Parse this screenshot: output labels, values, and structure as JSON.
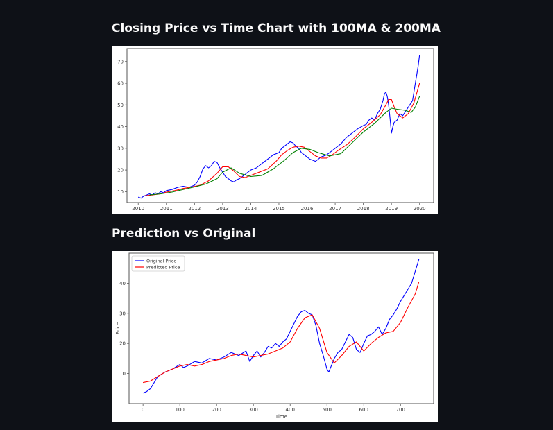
{
  "page": {
    "heading_ma": "Closing Price vs Time Chart with 100MA & 200MA",
    "heading_pred": "Prediction vs Original"
  },
  "colors": {
    "background": "#0e1117",
    "price": "#0000ff",
    "ma100": "#ff0000",
    "ma200": "#008000",
    "original": "#0000ff",
    "predicted": "#ff0000"
  },
  "chart_data": [
    {
      "type": "line",
      "title": "",
      "xlabel": "",
      "ylabel": "",
      "xlim": [
        2009.6,
        2020.5
      ],
      "ylim": [
        5,
        76
      ],
      "xticks": [
        2010,
        2011,
        2012,
        2013,
        2014,
        2015,
        2016,
        2017,
        2018,
        2019,
        2020
      ],
      "yticks": [
        10,
        20,
        30,
        40,
        50,
        60,
        70
      ],
      "grid": false,
      "legend": "none",
      "series": [
        {
          "key": "price",
          "x": [
            2010.0,
            2010.1,
            2010.2,
            2010.3,
            2010.4,
            2010.5,
            2010.6,
            2010.7,
            2010.8,
            2010.9,
            2011.0,
            2011.2,
            2011.4,
            2011.6,
            2011.8,
            2012.0,
            2012.1,
            2012.2,
            2012.3,
            2012.4,
            2012.5,
            2012.6,
            2012.7,
            2012.8,
            2012.9,
            2013.0,
            2013.1,
            2013.2,
            2013.3,
            2013.4,
            2013.5,
            2013.6,
            2013.7,
            2013.8,
            2013.9,
            2014.0,
            2014.2,
            2014.4,
            2014.6,
            2014.8,
            2015.0,
            2015.1,
            2015.2,
            2015.3,
            2015.4,
            2015.5,
            2015.6,
            2015.7,
            2015.8,
            2015.9,
            2016.0,
            2016.1,
            2016.2,
            2016.3,
            2016.4,
            2016.5,
            2016.6,
            2016.7,
            2016.8,
            2016.9,
            2017.0,
            2017.2,
            2017.4,
            2017.6,
            2017.8,
            2018.0,
            2018.1,
            2018.2,
            2018.3,
            2018.4,
            2018.5,
            2018.6,
            2018.7,
            2018.75,
            2018.8,
            2018.85,
            2018.9,
            2018.95,
            2019.0,
            2019.05,
            2019.1,
            2019.2,
            2019.3,
            2019.4,
            2019.5,
            2019.6,
            2019.7,
            2019.75,
            2019.8,
            2019.85,
            2019.9,
            2019.95,
            2020.0
          ],
          "y": [
            7.5,
            7.0,
            8.0,
            8.5,
            9.0,
            8.5,
            9.5,
            9.0,
            10.0,
            9.5,
            10.5,
            11.0,
            12.0,
            12.5,
            12.0,
            13.0,
            14.5,
            17.0,
            20.5,
            22.0,
            21.0,
            22.0,
            24.0,
            23.5,
            21.0,
            19.0,
            17.0,
            16.0,
            15.0,
            14.5,
            15.5,
            16.0,
            17.0,
            18.0,
            19.0,
            20.0,
            21.0,
            23.0,
            25.0,
            27.0,
            28.0,
            30.0,
            31.0,
            32.0,
            33.0,
            32.5,
            31.0,
            30.0,
            28.0,
            27.0,
            26.0,
            25.0,
            24.5,
            24.0,
            25.0,
            26.0,
            26.5,
            27.0,
            28.0,
            29.0,
            30.0,
            32.0,
            35.0,
            37.0,
            39.0,
            40.5,
            41.0,
            43.0,
            44.0,
            43.0,
            46.0,
            48.0,
            52.0,
            55.0,
            56.0,
            54.0,
            50.0,
            44.0,
            37.0,
            40.0,
            42.0,
            43.0,
            46.0,
            45.0,
            47.0,
            49.0,
            51.0,
            52.0,
            56.0,
            60.0,
            64.0,
            68.0,
            73.0
          ]
        },
        {
          "key": "ma100",
          "x": [
            2010.2,
            2010.5,
            2010.8,
            2011.0,
            2011.3,
            2011.6,
            2011.9,
            2012.2,
            2012.5,
            2012.8,
            2013.0,
            2013.2,
            2013.4,
            2013.6,
            2013.8,
            2014.0,
            2014.3,
            2014.6,
            2014.9,
            2015.1,
            2015.3,
            2015.5,
            2015.7,
            2015.9,
            2016.1,
            2016.3,
            2016.5,
            2016.7,
            2016.9,
            2017.1,
            2017.4,
            2017.7,
            2018.0,
            2018.3,
            2018.6,
            2018.8,
            2018.9,
            2019.0,
            2019.1,
            2019.2,
            2019.4,
            2019.6,
            2019.8,
            2020.0
          ],
          "y": [
            8.0,
            8.5,
            9.0,
            9.8,
            10.5,
            11.5,
            12.2,
            13.0,
            15.0,
            18.5,
            21.5,
            21.5,
            19.5,
            17.0,
            16.5,
            17.5,
            19.0,
            20.5,
            24.0,
            27.0,
            29.0,
            30.5,
            31.0,
            30.5,
            28.5,
            26.5,
            25.5,
            25.5,
            27.0,
            29.0,
            31.5,
            35.0,
            39.0,
            42.0,
            45.5,
            50.0,
            52.5,
            52.5,
            49.0,
            46.0,
            44.0,
            46.0,
            51.0,
            60.0
          ]
        },
        {
          "key": "ma200",
          "x": [
            2010.4,
            2010.8,
            2011.2,
            2011.6,
            2012.0,
            2012.4,
            2012.8,
            2013.0,
            2013.3,
            2013.6,
            2014.0,
            2014.4,
            2014.8,
            2015.2,
            2015.5,
            2015.8,
            2016.1,
            2016.4,
            2016.8,
            2017.2,
            2017.6,
            2018.0,
            2018.4,
            2018.8,
            2019.0,
            2019.2,
            2019.5,
            2019.7,
            2019.85,
            2020.0
          ],
          "y": [
            8.5,
            9.0,
            9.8,
            11.0,
            12.2,
            13.5,
            16.0,
            19.0,
            21.0,
            18.5,
            17.0,
            17.5,
            20.5,
            24.5,
            28.0,
            30.0,
            29.5,
            28.0,
            26.5,
            27.5,
            32.5,
            37.5,
            41.5,
            46.5,
            48.5,
            48.0,
            47.5,
            46.5,
            49.0,
            54.0
          ]
        }
      ]
    },
    {
      "type": "line",
      "title": "",
      "xlabel": "Time",
      "ylabel": "Price",
      "xlim": [
        -38,
        790
      ],
      "ylim": [
        0,
        50
      ],
      "xticks": [
        0,
        100,
        200,
        300,
        400,
        500,
        600,
        700
      ],
      "yticks": [
        10,
        20,
        30,
        40
      ],
      "grid": false,
      "legend": "top-left",
      "series": [
        {
          "key": "original",
          "name": "Original Price",
          "x": [
            0,
            10,
            20,
            30,
            40,
            60,
            80,
            100,
            110,
            120,
            140,
            160,
            180,
            200,
            220,
            240,
            260,
            280,
            290,
            300,
            310,
            320,
            330,
            340,
            350,
            360,
            370,
            380,
            390,
            400,
            410,
            420,
            430,
            440,
            450,
            460,
            470,
            480,
            490,
            500,
            505,
            510,
            520,
            530,
            540,
            550,
            560,
            570,
            580,
            590,
            600,
            610,
            620,
            630,
            640,
            650,
            660,
            670,
            680,
            690,
            700,
            710,
            720,
            730,
            740,
            750
          ],
          "y": [
            3.5,
            4.0,
            5.0,
            7.0,
            9.0,
            10.5,
            11.5,
            13.0,
            12.0,
            12.5,
            14.0,
            13.5,
            15.0,
            14.5,
            15.5,
            17.0,
            16.0,
            17.5,
            14.0,
            16.0,
            17.5,
            15.5,
            17.0,
            19.0,
            18.5,
            20.0,
            19.0,
            20.5,
            21.5,
            24.0,
            26.5,
            29.0,
            30.5,
            31.0,
            30.0,
            29.5,
            26.0,
            20.0,
            16.0,
            11.5,
            10.5,
            12.0,
            15.0,
            17.0,
            18.0,
            20.5,
            23.0,
            22.0,
            18.0,
            17.0,
            20.0,
            22.5,
            23.0,
            24.0,
            25.5,
            23.0,
            25.0,
            28.0,
            29.5,
            31.5,
            34.0,
            36.0,
            38.0,
            40.0,
            44.0,
            48.0
          ]
        },
        {
          "key": "predicted",
          "name": "Predicted Price",
          "x": [
            0,
            20,
            40,
            60,
            80,
            100,
            120,
            140,
            160,
            180,
            200,
            220,
            240,
            260,
            280,
            300,
            320,
            340,
            360,
            380,
            400,
            420,
            440,
            460,
            480,
            500,
            520,
            540,
            560,
            580,
            600,
            620,
            640,
            660,
            680,
            700,
            720,
            740,
            750
          ],
          "y": [
            7.0,
            7.5,
            9.0,
            10.5,
            11.5,
            12.5,
            13.0,
            12.5,
            13.0,
            14.0,
            14.5,
            15.0,
            16.0,
            16.5,
            16.0,
            15.5,
            16.0,
            16.5,
            17.5,
            18.5,
            20.5,
            25.0,
            28.5,
            29.5,
            25.0,
            17.0,
            13.5,
            16.0,
            19.0,
            20.5,
            17.5,
            20.0,
            22.0,
            23.5,
            24.0,
            27.0,
            32.0,
            36.5,
            40.5
          ]
        }
      ]
    }
  ]
}
